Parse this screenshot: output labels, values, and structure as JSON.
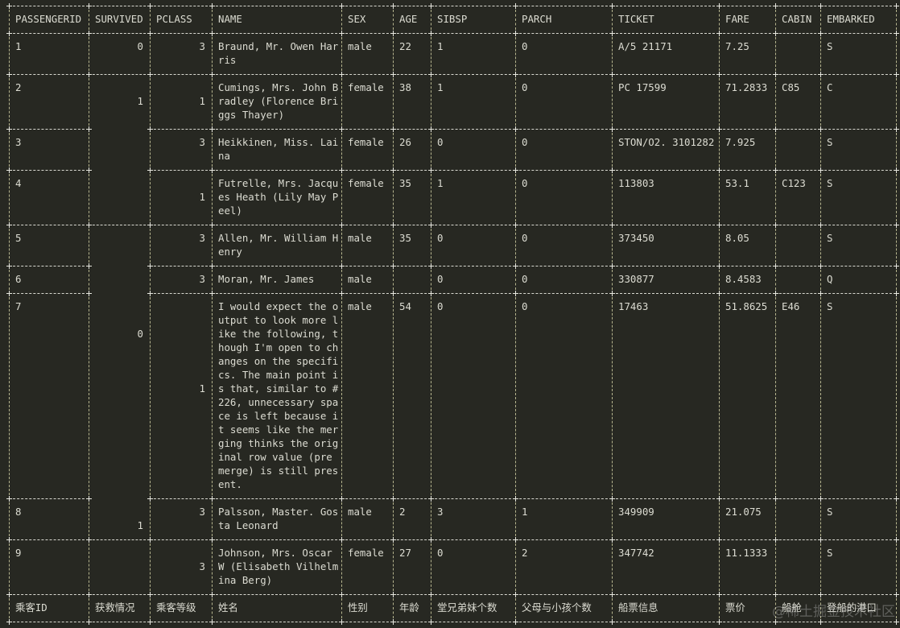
{
  "table": {
    "columns": [
      "PASSENGERID",
      "SURVIVED",
      "PCLASS",
      "NAME",
      "SEX",
      "AGE",
      "SIBSP",
      "PARCH",
      "TICKET",
      "FARE",
      "CABIN",
      "EMBARKED"
    ],
    "rows": [
      {
        "passengerid": "1",
        "survived": "0",
        "pclass": "3",
        "name": [
          "Braund, Mr. Owen Har",
          "ris"
        ],
        "sex": "male",
        "age": "22",
        "sibsp": "1",
        "parch": "0",
        "ticket": "A/5 21171",
        "fare": "7.25",
        "cabin": "",
        "embarked": "S"
      },
      {
        "passengerid": "2",
        "survived": "1",
        "pclass": "1",
        "name": [
          "Cumings, Mrs. John B",
          "radley (Florence Bri",
          "ggs Thayer)"
        ],
        "sex": "female",
        "age": "38",
        "sibsp": "1",
        "parch": "0",
        "ticket": "PC 17599",
        "fare": "71.2833",
        "cabin": "C85",
        "embarked": "C"
      },
      {
        "passengerid": "3",
        "survived": "",
        "pclass": "3",
        "name": [
          "Heikkinen, Miss. Lai",
          "na"
        ],
        "sex": "female",
        "age": "26",
        "sibsp": "0",
        "parch": "0",
        "ticket": "STON/O2. 3101282",
        "fare": "7.925",
        "cabin": "",
        "embarked": "S"
      },
      {
        "passengerid": "4",
        "survived": "",
        "pclass": "1",
        "name": [
          "Futrelle, Mrs. Jacqu",
          "es Heath (Lily May P",
          "eel)"
        ],
        "sex": "female",
        "age": "35",
        "sibsp": "1",
        "parch": "0",
        "ticket": "113803",
        "fare": "53.1",
        "cabin": "C123",
        "embarked": "S"
      },
      {
        "passengerid": "5",
        "survived": "0",
        "pclass": "3",
        "name": [
          "Allen, Mr. William H",
          "enry"
        ],
        "sex": "male",
        "age": "35",
        "sibsp": "0",
        "parch": "0",
        "ticket": "373450",
        "fare": "8.05",
        "cabin": "",
        "embarked": "S"
      },
      {
        "passengerid": "6",
        "survived": "",
        "pclass": "3",
        "name": [
          "Moran, Mr. James"
        ],
        "sex": "male",
        "age": "",
        "sibsp": "0",
        "parch": "0",
        "ticket": "330877",
        "fare": "8.4583",
        "cabin": "",
        "embarked": "Q"
      },
      {
        "passengerid": "7",
        "survived": "",
        "pclass": "1",
        "name": [
          "I would expect the o",
          "utput to look more l",
          "ike the following, t",
          "hough I'm open to ch",
          "anges on the specifi",
          "cs. The main point i",
          "s that, similar to #",
          "226, unnecessary spa",
          "ce is left because i",
          "t seems like the mer",
          "ging thinks the orig",
          "inal row value (pre ",
          "merge) is still pres",
          "ent."
        ],
        "sex": "male",
        "age": "54",
        "sibsp": "0",
        "parch": "0",
        "ticket": "17463",
        "fare": "51.8625",
        "cabin": "E46",
        "embarked": "S"
      },
      {
        "passengerid": "8",
        "survived": "",
        "pclass": "3",
        "name": [
          "Palsson, Master. Gos",
          "ta Leonard"
        ],
        "sex": "male",
        "age": "2",
        "sibsp": "3",
        "parch": "1",
        "ticket": "349909",
        "fare": "21.075",
        "cabin": "",
        "embarked": "S"
      },
      {
        "passengerid": "9",
        "survived": "1",
        "pclass": "3",
        "name": [
          "Johnson, Mrs. Oscar ",
          "W (Elisabeth Vilhelm",
          "ina Berg)"
        ],
        "sex": "female",
        "age": "27",
        "sibsp": "0",
        "parch": "2",
        "ticket": "347742",
        "fare": "11.1333",
        "cabin": "",
        "embarked": "S"
      }
    ],
    "footer": [
      "乘客ID",
      "获救情况",
      "乘客等级",
      "姓名",
      "性别",
      "年龄",
      "堂兄弟妹个数",
      "父母与小孩个数",
      "船票信息",
      "票价",
      "船舱",
      "登船的港口"
    ]
  },
  "merges": {
    "survived": [
      {
        "from": 1,
        "to": 3,
        "value": "1"
      },
      {
        "from": 4,
        "to": 7,
        "value": "0"
      },
      {
        "from": 8,
        "to": 8,
        "value": "1"
      }
    ]
  },
  "watermark": "@稀土掘金技术社区",
  "colors": {
    "background": "#272822",
    "text": "#dcdcd2",
    "vertical_border": "#b5b48e",
    "horizontal_border": "#d8d8d0"
  }
}
